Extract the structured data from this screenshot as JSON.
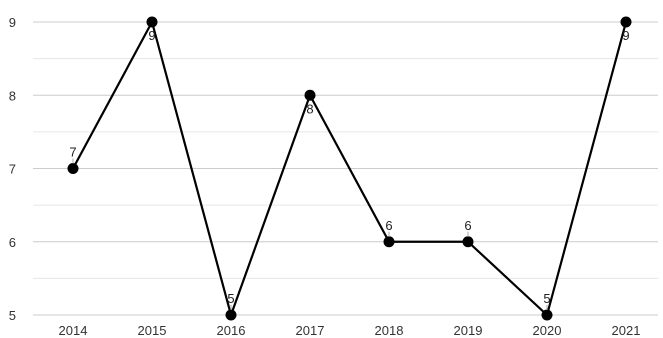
{
  "chart_data": {
    "type": "line",
    "title": "",
    "xlabel": "",
    "ylabel": "",
    "categories": [
      "2014",
      "2015",
      "2016",
      "2017",
      "2018",
      "2019",
      "2020",
      "2021"
    ],
    "series": [
      {
        "values": [
          7,
          9,
          5,
          8,
          6,
          6,
          5,
          9
        ],
        "data_labels": [
          "7",
          "9",
          "5",
          "8",
          "6",
          "6",
          "5",
          "9"
        ],
        "color": "#000000"
      }
    ],
    "ylim": [
      5,
      9
    ],
    "yticks": [
      "5",
      "6",
      "7",
      "8",
      "9"
    ],
    "grid": true,
    "minor_grid": true,
    "legend": "none",
    "colors": {
      "line": "#000000",
      "grid_major": "#cccccc",
      "grid_minor": "#e6e6e6",
      "tick_text": "#333333"
    }
  }
}
